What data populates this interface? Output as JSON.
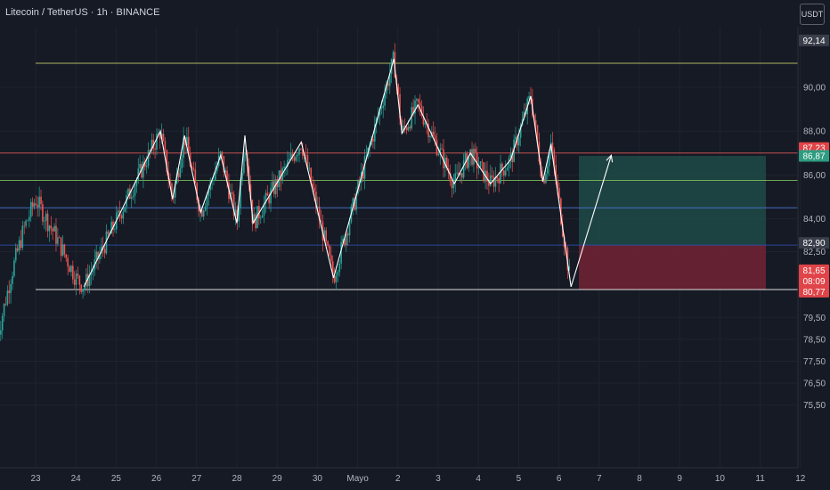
{
  "header": {
    "title": "Litecoin / TetherUS · 1h · BINANCE",
    "currency_button": "USDT"
  },
  "chart_data": {
    "type": "candlestick",
    "x_ticks": [
      "23",
      "24",
      "25",
      "26",
      "27",
      "28",
      "29",
      "30",
      "Mayo",
      "2",
      "3",
      "4",
      "5",
      "6",
      "7",
      "8",
      "9",
      "10",
      "11",
      "12"
    ],
    "y_ticks": [
      "90,00",
      "88,00",
      "86,00",
      "84,00",
      "82,50",
      "79,50",
      "78,50",
      "77,50",
      "76,50",
      "75,50"
    ],
    "y_range": [
      74.8,
      93.5
    ],
    "horizontal_levels": [
      {
        "name": "top-resistance",
        "value": 91.1,
        "color": "#c9d36a"
      },
      {
        "name": "red-resistance",
        "value": 87.0,
        "color": "#e05a5a"
      },
      {
        "name": "green-level",
        "value": 85.75,
        "color": "#7fc25a"
      },
      {
        "name": "blue-level",
        "value": 84.5,
        "color": "#4a78d6"
      },
      {
        "name": "dark-blue-level",
        "value": 82.8,
        "color": "#2e4fb0"
      },
      {
        "name": "white-support",
        "value": 80.77,
        "color": "#ffffff"
      }
    ],
    "price_labels": [
      {
        "text": "92,14",
        "value": 92.14,
        "color": "#3a3e4a"
      },
      {
        "text": "87,23",
        "value": 87.23,
        "color": "#e04448"
      },
      {
        "text": "86,87",
        "value": 86.87,
        "color": "#2e9c80"
      },
      {
        "text": "82,90",
        "value": 82.9,
        "color": "#3a3e4a"
      },
      {
        "text": "81,65",
        "value": 81.65,
        "color": "#e04448"
      },
      {
        "text": "08:09",
        "value": 81.3,
        "color": "#e04448"
      },
      {
        "text": "80,77",
        "value": 80.77,
        "color": "#e04448"
      }
    ],
    "position": {
      "entry": 82.8,
      "target": 86.87,
      "stop": 80.77,
      "profit_color": "#1e4a48",
      "loss_color": "#6b2233"
    },
    "zigzag": [
      [
        24.2,
        80.9
      ],
      [
        26.1,
        88.0
      ],
      [
        26.4,
        84.9
      ],
      [
        26.7,
        87.8
      ],
      [
        27.1,
        84.3
      ],
      [
        27.6,
        86.9
      ],
      [
        28.0,
        83.8
      ],
      [
        28.2,
        87.8
      ],
      [
        28.4,
        83.8
      ],
      [
        29.6,
        87.5
      ],
      [
        30.4,
        81.3
      ],
      [
        31.9,
        91.3
      ],
      [
        32.1,
        87.9
      ],
      [
        32.5,
        89.2
      ],
      [
        33.4,
        85.6
      ],
      [
        33.8,
        87.0
      ],
      [
        34.3,
        85.6
      ],
      [
        34.8,
        86.7
      ],
      [
        35.3,
        89.6
      ],
      [
        35.6,
        85.7
      ],
      [
        35.8,
        87.4
      ],
      [
        36.3,
        80.9
      ],
      [
        37.3,
        86.9
      ]
    ]
  }
}
